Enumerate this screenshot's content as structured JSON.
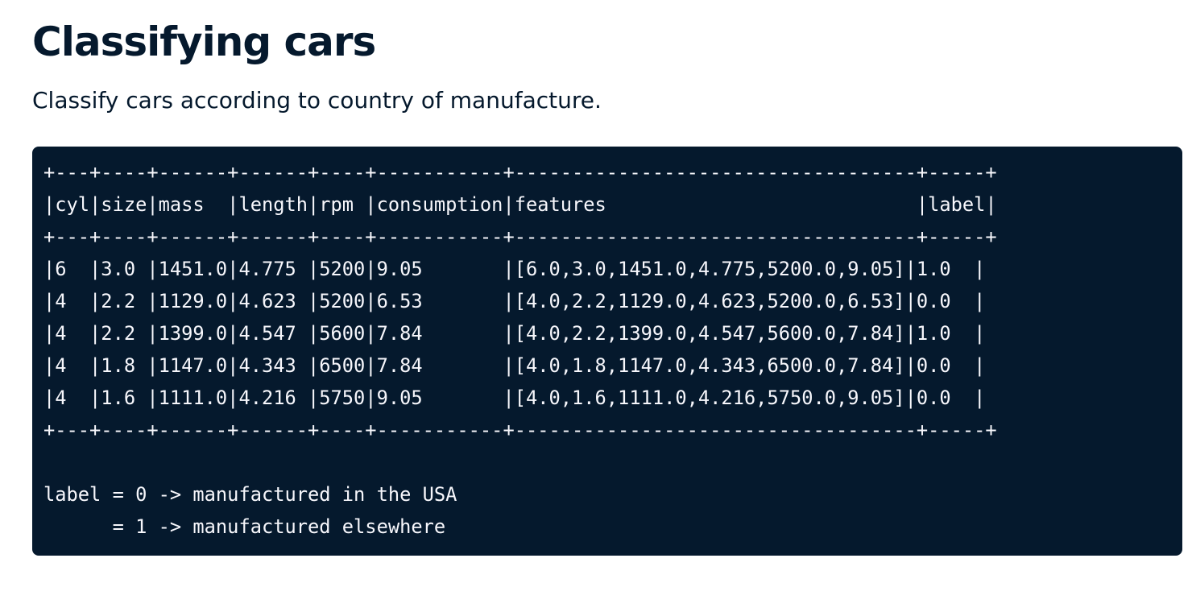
{
  "page": {
    "title": "Classifying cars",
    "subtitle": "Classify cars according to country of manufacture."
  },
  "code_block": {
    "lines": [
      "+---+----+------+------+----+-----------+-----------------------------------+-----+",
      "|cyl|size|mass  |length|rpm |consumption|features                           |label|",
      "+---+----+------+------+----+-----------+-----------------------------------+-----+",
      "|6  |3.0 |1451.0|4.775 |5200|9.05       |[6.0,3.0,1451.0,4.775,5200.0,9.05]|1.0  |",
      "|4  |2.2 |1129.0|4.623 |5200|6.53       |[4.0,2.2,1129.0,4.623,5200.0,6.53]|0.0  |",
      "|4  |2.2 |1399.0|4.547 |5600|7.84       |[4.0,2.2,1399.0,4.547,5600.0,7.84]|1.0  |",
      "|4  |1.8 |1147.0|4.343 |6500|7.84       |[4.0,1.8,1147.0,4.343,6500.0,7.84]|0.0  |",
      "|4  |1.6 |1111.0|4.216 |5750|9.05       |[4.0,1.6,1111.0,4.216,5750.0,9.05]|0.0  |",
      "+---+----+------+------+----+-----------+-----------------------------------+-----+",
      "",
      "label = 0 -> manufactured in the USA",
      "      = 1 -> manufactured elsewhere"
    ]
  },
  "colors": {
    "heading": "#05192d",
    "code_background": "#05192d",
    "code_text": "#f7f7fc"
  }
}
